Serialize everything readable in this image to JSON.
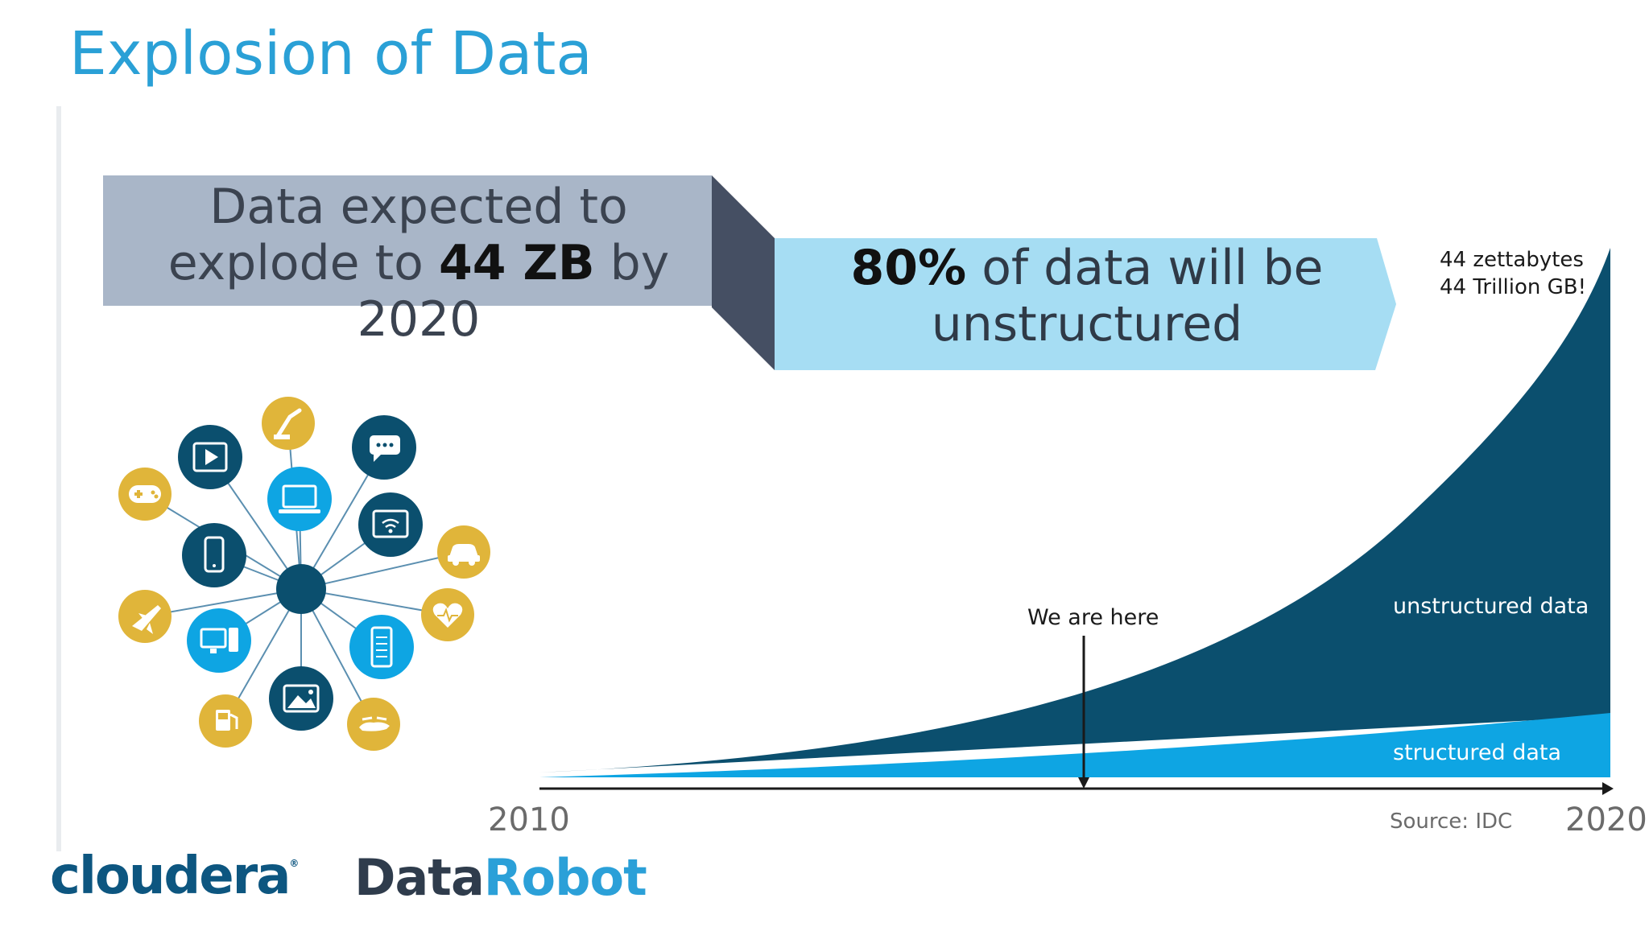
{
  "slide": {
    "title": "Explosion of Data"
  },
  "callout_left": {
    "line1": "Data expected to",
    "line2_pre": "explode to ",
    "line2_bold": "44 ZB",
    "line2_post": " by",
    "line3": "2020"
  },
  "callout_right": {
    "bold": "80%",
    "line1_post": " of data will be",
    "line2": "unstructured"
  },
  "chart_data": {
    "type": "area",
    "x_start_label": "2010",
    "x_end_label": "2020",
    "peak_label_1": "44 zettabytes",
    "peak_label_2": "44 Trillion GB!",
    "marker_label": "We are here",
    "source": "Source: IDC",
    "series": [
      {
        "name": "unstructured data",
        "color": "#0b4f6e"
      },
      {
        "name": "structured data",
        "color": "#0ea5e3"
      }
    ]
  },
  "icons": {
    "hub_color": "#0b4f6e",
    "dark": [
      "video-icon",
      "chat-icon",
      "smartphone-icon",
      "wifi-screen-icon",
      "photo-icon"
    ],
    "blue": [
      "laptop-icon",
      "desktop-icon",
      "server-icon"
    ],
    "gold": [
      "robot-arm-icon",
      "gamepad-icon",
      "car-icon",
      "airplane-icon",
      "heart-monitor-icon",
      "fuel-pump-icon",
      "drone-icon"
    ]
  },
  "logos": {
    "cloudera": "cloudera",
    "cloudera_mark": "®",
    "datarobot_part1": "Data",
    "datarobot_part2": "Robot"
  }
}
